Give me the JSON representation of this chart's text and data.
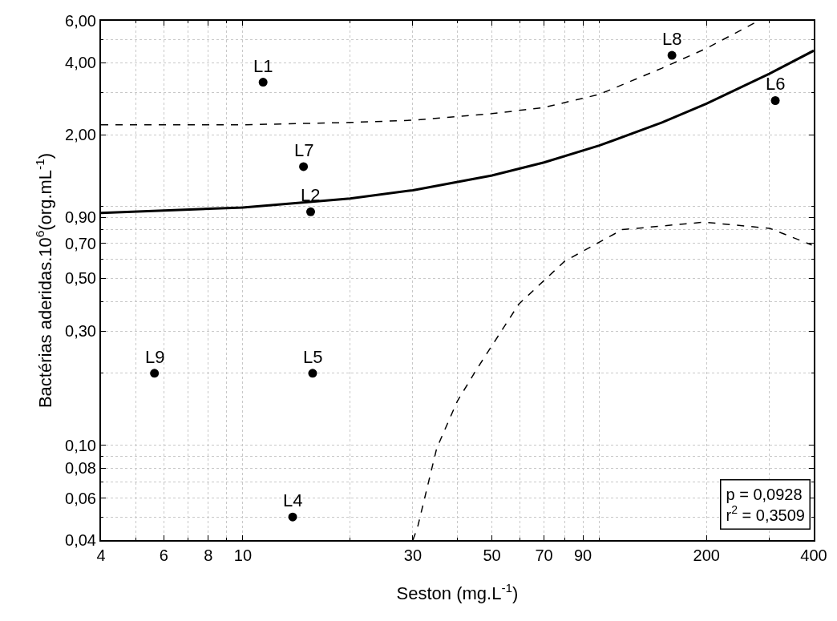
{
  "chart_data": {
    "type": "scatter",
    "xlabel": "Seston (mg.L$^{-1}$)",
    "ylabel": "Bactérias aderidas.10$^{6}$(org.mL$^{-1}$)",
    "log": "xy",
    "grid": true,
    "xlim": [
      4,
      400
    ],
    "ylim": [
      0.04,
      6
    ],
    "xticks": [
      4,
      6,
      8,
      10,
      30,
      50,
      70,
      90,
      200,
      400
    ],
    "yticks": [
      {
        "value": 0.04,
        "label": "0,04"
      },
      {
        "value": 0.06,
        "label": "0,06"
      },
      {
        "value": 0.08,
        "label": "0,08"
      },
      {
        "value": 0.1,
        "label": "0,10"
      },
      {
        "value": 0.3,
        "label": "0,30"
      },
      {
        "value": 0.5,
        "label": "0,50"
      },
      {
        "value": 0.7,
        "label": "0,70"
      },
      {
        "value": 0.9,
        "label": "0,90"
      },
      {
        "value": 2,
        "label": "2,00"
      },
      {
        "value": 4,
        "label": "4,00"
      },
      {
        "value": 6,
        "label": "6,00"
      }
    ],
    "series": [
      {
        "color": "#000000",
        "marker": "circle",
        "x": [
          11.4,
          15.5,
          13.8,
          15.7,
          312,
          14.8,
          160,
          5.65
        ],
        "values": [
          3.32,
          0.95,
          0.05,
          0.2,
          2.78,
          1.47,
          4.3,
          0.2
        ]
      },
      {
        "type": "line",
        "color": "#000000",
        "marker": "none",
        "line_style": "solid",
        "x": [
          4,
          10,
          20,
          30,
          50,
          70,
          100,
          150,
          200,
          300,
          400
        ],
        "values": [
          0.94,
          0.99,
          1.08,
          1.17,
          1.35,
          1.53,
          1.8,
          2.25,
          2.7,
          3.6,
          4.5
        ]
      },
      {
        "type": "line",
        "color": "#000000",
        "marker": "none",
        "line_style": "dashed",
        "x": [
          4,
          10,
          20,
          30,
          50,
          70,
          100,
          150,
          200,
          280
        ],
        "values": [
          2.2,
          2.2,
          2.25,
          2.3,
          2.45,
          2.6,
          2.95,
          3.8,
          4.6,
          6
        ]
      },
      {
        "type": "line",
        "color": "#000000",
        "marker": "none",
        "line_style": "dashed",
        "x": [
          30,
          30.9,
          35,
          40,
          45.5,
          59.5,
          80,
          116,
          197,
          301,
          395
        ],
        "values": [
          0.04,
          0.045,
          0.097,
          0.153,
          0.21,
          0.39,
          0.59,
          0.8,
          0.86,
          0.81,
          0.69
        ]
      }
    ],
    "annotations": [
      {
        "text": "L1",
        "x": 11.4,
        "y": 3.32
      },
      {
        "text": "L2",
        "x": 15.5,
        "y": 0.95
      },
      {
        "text": "L4",
        "x": 13.8,
        "y": 0.05
      },
      {
        "text": "L5",
        "x": 15.7,
        "y": 0.2
      },
      {
        "text": "L6",
        "x": 312,
        "y": 2.78
      },
      {
        "text": "L7",
        "x": 14.8,
        "y": 1.47
      },
      {
        "text": "L8",
        "x": 160,
        "y": 4.3
      },
      {
        "text": "L9",
        "x": 5.65,
        "y": 0.2
      },
      "p = 0,0928",
      "r$^{2}$ = 0,3509"
    ]
  }
}
